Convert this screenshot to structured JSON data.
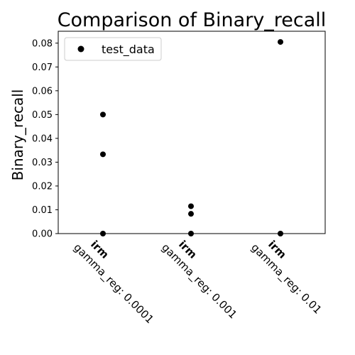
{
  "chart_data": {
    "type": "scatter",
    "title": "Comparison of Binary_recall",
    "xlabel": "",
    "ylabel": "Binary_recall",
    "categories": [
      {
        "name": "irm",
        "sub": "gamma_reg: 0.0001"
      },
      {
        "name": "irm",
        "sub": "gamma_reg: 0.001"
      },
      {
        "name": "irm",
        "sub": "gamma_reg: 0.01"
      }
    ],
    "series": [
      {
        "name": "test_data",
        "color": "#000000",
        "points": [
          {
            "category": 0,
            "y": 0.05
          },
          {
            "category": 0,
            "y": 0.0333
          },
          {
            "category": 0,
            "y": 0.0
          },
          {
            "category": 1,
            "y": 0.0115
          },
          {
            "category": 1,
            "y": 0.0083
          },
          {
            "category": 1,
            "y": 0.0
          },
          {
            "category": 2,
            "y": 0.0805
          },
          {
            "category": 2,
            "y": 0.0
          }
        ]
      }
    ],
    "ylim": [
      0,
      0.085
    ],
    "yticks": [
      "0.00",
      "0.01",
      "0.02",
      "0.03",
      "0.04",
      "0.05",
      "0.06",
      "0.07",
      "0.08"
    ],
    "legend_position": "upper-left",
    "grid": false
  }
}
